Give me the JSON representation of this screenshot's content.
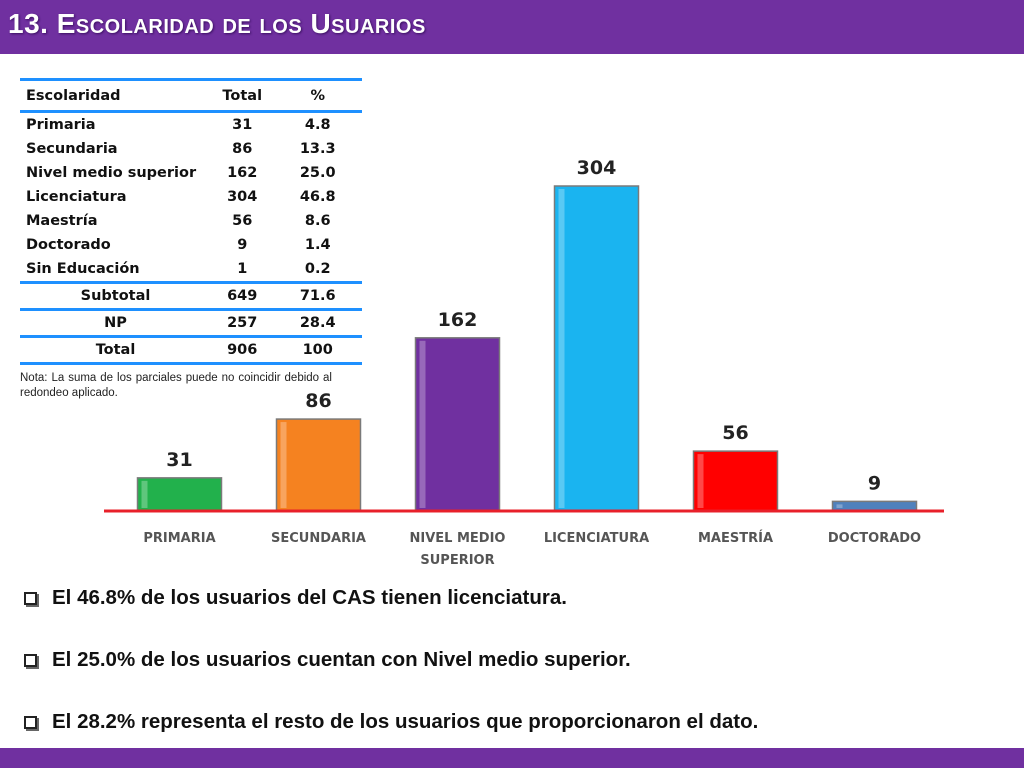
{
  "title": "13. Escolaridad de los Usuarios",
  "table": {
    "headers": [
      "Escolaridad",
      "Total",
      "%"
    ],
    "rows": [
      {
        "name": "Primaria",
        "total": "31",
        "pct": "4.8"
      },
      {
        "name": "Secundaria",
        "total": "86",
        "pct": "13.3"
      },
      {
        "name": "Nivel medio superior",
        "total": "162",
        "pct": "25.0"
      },
      {
        "name": "Licenciatura",
        "total": "304",
        "pct": "46.8"
      },
      {
        "name": "Maestría",
        "total": "56",
        "pct": "8.6"
      },
      {
        "name": "Doctorado",
        "total": "9",
        "pct": "1.4"
      },
      {
        "name": "Sin Educación",
        "total": "1",
        "pct": "0.2"
      }
    ],
    "summary": [
      {
        "name": "Subtotal",
        "total": "649",
        "pct": "71.6"
      },
      {
        "name": "NP",
        "total": "257",
        "pct": "28.4"
      },
      {
        "name": "Total",
        "total": "906",
        "pct": "100"
      }
    ]
  },
  "note": "Nota: La suma de los parciales puede no coincidir debido al redondeo aplicado.",
  "chart_data": {
    "type": "bar",
    "categories": [
      "PRIMARIA",
      "SECUNDARIA",
      "NIVEL MEDIO SUPERIOR",
      "LICENCIATURA",
      "MAESTRÍA",
      "DOCTORADO"
    ],
    "category_lines": [
      [
        "PRIMARIA"
      ],
      [
        "SECUNDARIA"
      ],
      [
        "NIVEL MEDIO",
        "SUPERIOR"
      ],
      [
        "LICENCIATURA"
      ],
      [
        "MAESTRÍA"
      ],
      [
        "DOCTORADO"
      ]
    ],
    "values": [
      31,
      86,
      162,
      304,
      56,
      9
    ],
    "colors": [
      "#22b14c",
      "#f58220",
      "#7030a0",
      "#1ab4f0",
      "#ff0000",
      "#4f81bd"
    ],
    "baseline_color": "#e8202a",
    "title": "",
    "xlabel": "",
    "ylabel": "",
    "ylim": [
      0,
      304
    ],
    "grid": false
  },
  "bullets": [
    "El 46.8% de los usuarios del CAS tienen licenciatura.",
    "El 25.0% de los usuarios cuentan con Nivel medio superior.",
    "El  28.2% representa el resto de los usuarios que proporcionaron el dato."
  ]
}
